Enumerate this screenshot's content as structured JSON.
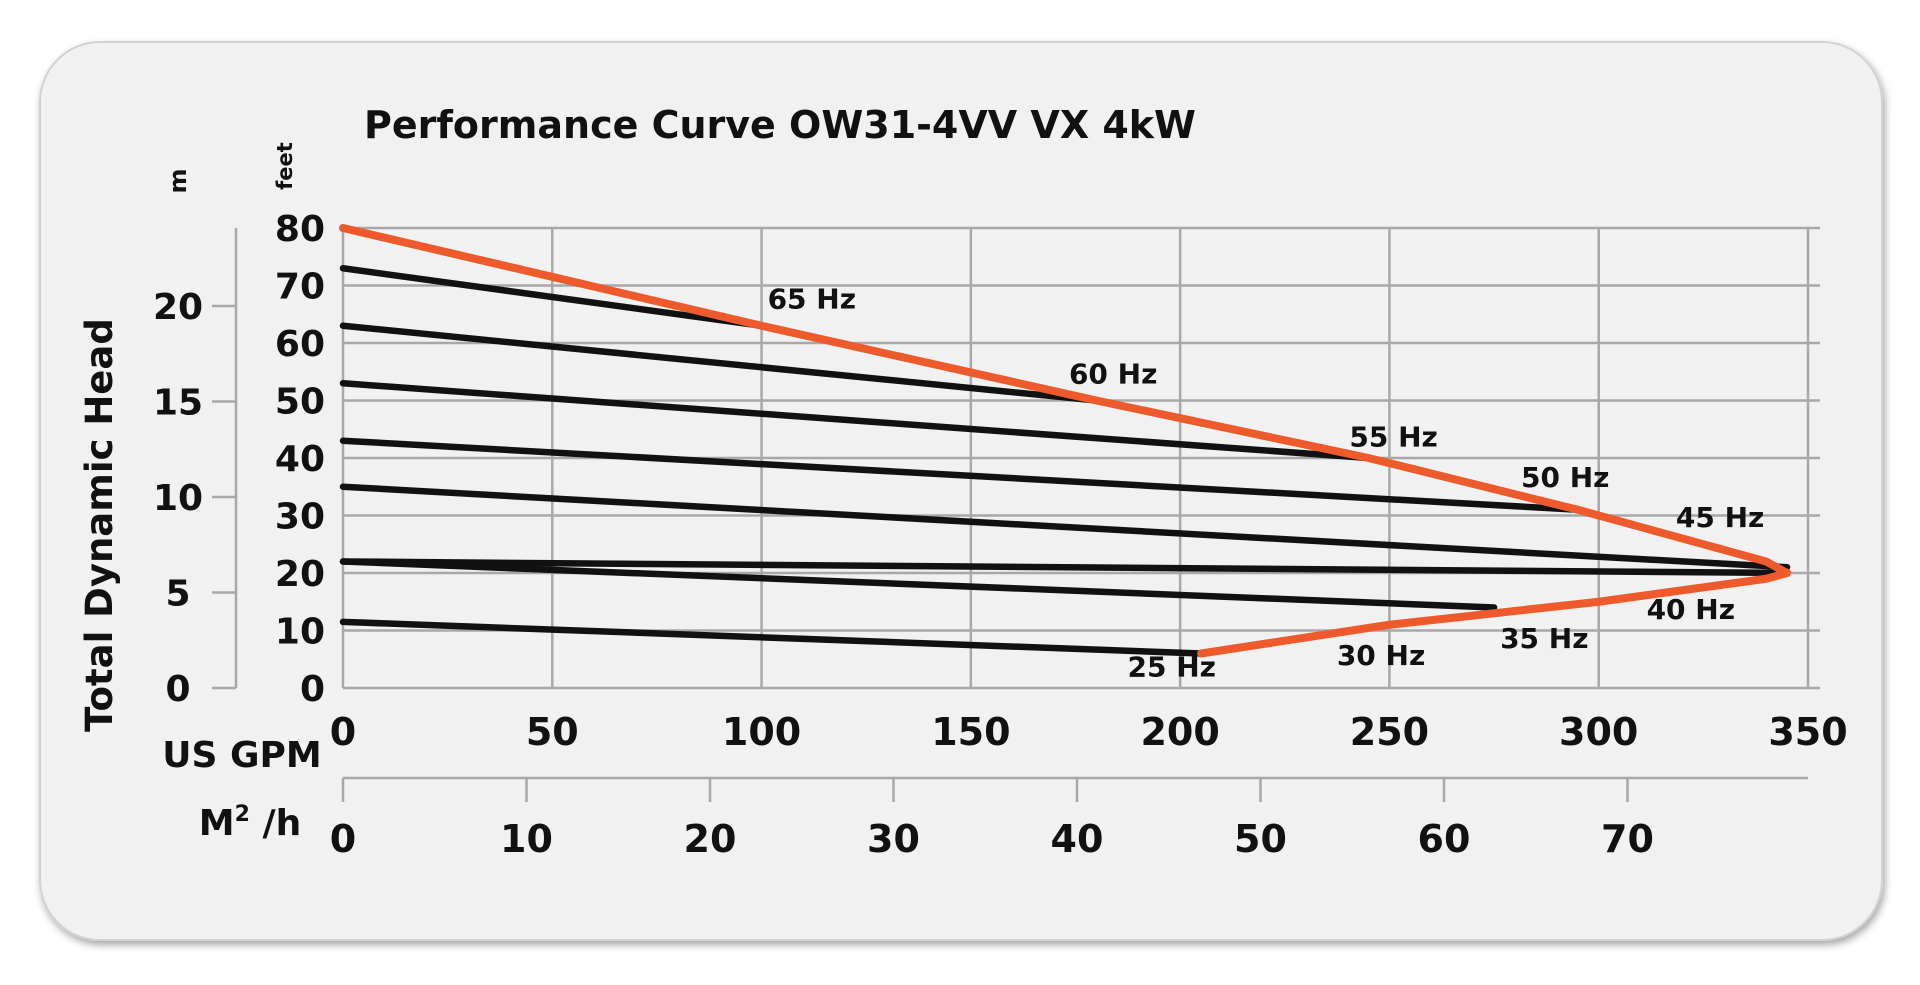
{
  "chart_data": {
    "type": "line",
    "title": "Performance Curve OW31-4VV VX 4kW",
    "ylabel": "Total Dynamic Head",
    "y_unit_feet": "feet",
    "y_unit_m": "m",
    "xlabel_gpm": "US GPM",
    "xlabel_m3h_base": "M",
    "xlabel_m3h_sup": "2",
    "xlabel_m3h_suffix": " /h",
    "xlim_gpm": [
      0,
      350
    ],
    "ylim_feet": [
      0,
      80
    ],
    "x_ticks_gpm": [
      "0",
      "50",
      "100",
      "150",
      "200",
      "250",
      "300",
      "350"
    ],
    "y_ticks_feet": [
      "0",
      "10",
      "20",
      "30",
      "40",
      "50",
      "60",
      "70",
      "80"
    ],
    "x_ticks_m3h": [
      {
        "label": "0",
        "value": 0
      },
      {
        "label": "10",
        "value": 10
      },
      {
        "label": "20",
        "value": 20
      },
      {
        "label": "30",
        "value": 30
      },
      {
        "label": "40",
        "value": 40
      },
      {
        "label": "50",
        "value": 50
      },
      {
        "label": "60",
        "value": 60
      },
      {
        "label": "70",
        "value": 70
      }
    ],
    "y_ticks_m": [
      {
        "label": "0",
        "value": 0
      },
      {
        "label": "5",
        "value": 5
      },
      {
        "label": "10",
        "value": 10
      },
      {
        "label": "15",
        "value": 15
      },
      {
        "label": "20",
        "value": 20
      }
    ],
    "grid": true,
    "series": [
      {
        "name": "65 Hz",
        "points": [
          [
            0,
            73
          ],
          [
            100,
            63
          ]
        ]
      },
      {
        "name": "60 Hz",
        "points": [
          [
            0,
            63
          ],
          [
            180,
            50
          ]
        ]
      },
      {
        "name": "55 Hz",
        "points": [
          [
            0,
            53
          ],
          [
            245,
            40
          ]
        ]
      },
      {
        "name": "50 Hz",
        "points": [
          [
            0,
            43
          ],
          [
            295,
            31
          ]
        ]
      },
      {
        "name": "45 Hz",
        "points": [
          [
            0,
            35
          ],
          [
            345,
            21
          ]
        ]
      },
      {
        "name": "40 Hz",
        "points": [
          [
            0,
            22
          ],
          [
            345,
            20
          ]
        ]
      },
      {
        "name": "35 Hz",
        "points": [
          [
            0,
            22
          ],
          [
            275,
            14
          ]
        ]
      },
      {
        "name": "30 Hz",
        "points": [
          [
            0,
            11.5
          ],
          [
            205,
            6
          ]
        ]
      }
    ],
    "max_curve": {
      "points": [
        [
          0,
          80
        ],
        [
          100,
          63
        ],
        [
          180,
          50
        ],
        [
          245,
          40
        ],
        [
          295,
          31
        ],
        [
          340,
          22
        ],
        [
          345,
          20
        ],
        [
          340,
          19
        ],
        [
          300,
          15
        ],
        [
          250,
          11
        ],
        [
          205,
          6
        ]
      ]
    },
    "annotations": [
      {
        "text": "65 Hz",
        "x": 112,
        "y": 66
      },
      {
        "text": "60 Hz",
        "x": 184,
        "y": 53
      },
      {
        "text": "55 Hz",
        "x": 251,
        "y": 42
      },
      {
        "text": "50 Hz",
        "x": 292,
        "y": 35
      },
      {
        "text": "45 Hz",
        "x": 329,
        "y": 28
      },
      {
        "text": "40 Hz",
        "x": 322,
        "y": 12
      },
      {
        "text": "35 Hz",
        "x": 287,
        "y": 7
      },
      {
        "text": "30 Hz",
        "x": 248,
        "y": 4
      },
      {
        "text": "25 Hz",
        "x": 198,
        "y": 2
      }
    ]
  }
}
